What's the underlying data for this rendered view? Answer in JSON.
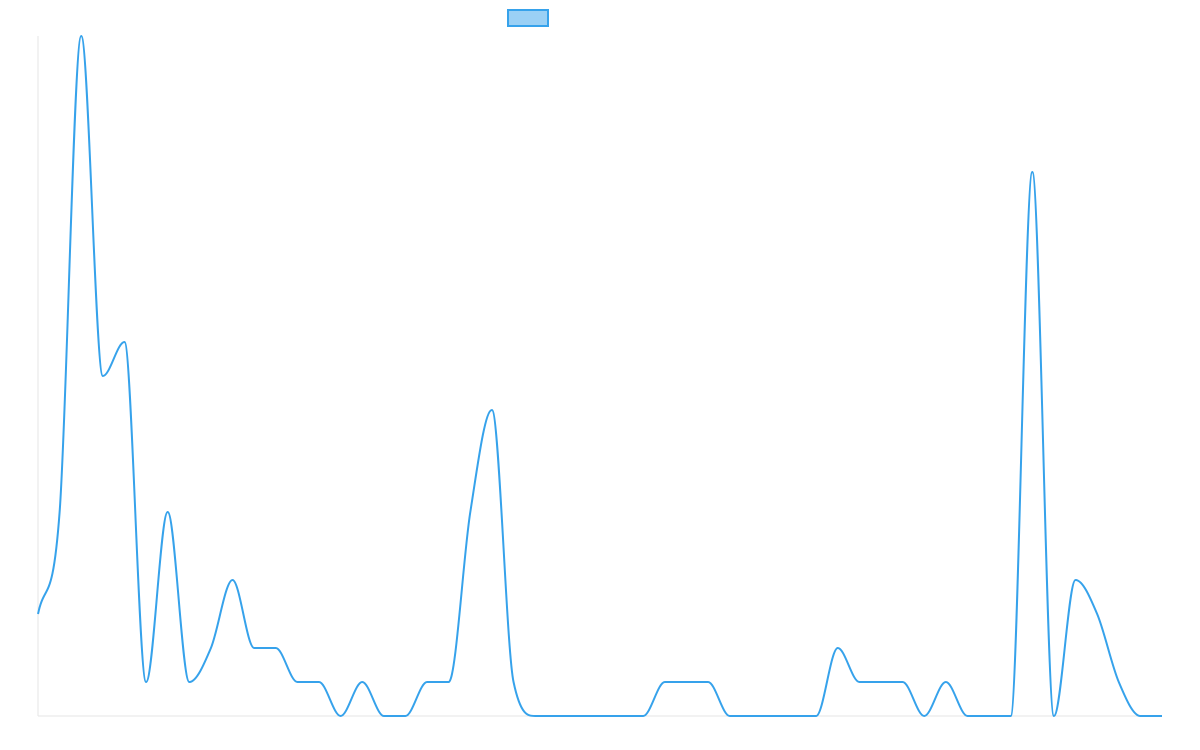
{
  "chart_data": {
    "type": "line",
    "title": "",
    "xlabel": "",
    "ylabel": "",
    "legend": {
      "placement": "top-center",
      "entries": [
        {
          "name": "",
          "color": "#36a2eb",
          "fill": "#9ad0f5"
        }
      ]
    },
    "series": [
      {
        "name": "",
        "color": "#36a2eb",
        "values": [
          3,
          6,
          20,
          10,
          11,
          1,
          6,
          1,
          2,
          4,
          2,
          2,
          1,
          1,
          0,
          1,
          0,
          0,
          1,
          1,
          6,
          9,
          1,
          0,
          0,
          0,
          0,
          0,
          0,
          1,
          1,
          1,
          0,
          0,
          0,
          0,
          0,
          2,
          1,
          1,
          1,
          0,
          1,
          0,
          0,
          0,
          16,
          0,
          4,
          3,
          1,
          0,
          0
        ]
      }
    ],
    "ylim": [
      0,
      20
    ],
    "grid": false
  }
}
